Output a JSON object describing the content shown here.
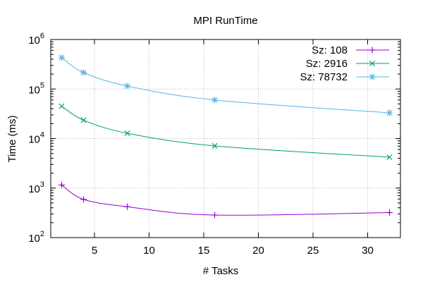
{
  "chart_data": {
    "type": "line",
    "title": "MPI RunTime",
    "xlabel": "# Tasks",
    "ylabel": "Time (ms)",
    "xlim": [
      1,
      33
    ],
    "ylim": [
      100,
      1000000
    ],
    "yscale": "log",
    "grid": true,
    "legend_position": "top-right",
    "x": [
      2,
      4,
      8,
      16,
      32
    ],
    "x_ticks": [
      {
        "value": 5,
        "label": "5"
      },
      {
        "value": 10,
        "label": "10"
      },
      {
        "value": 15,
        "label": "15"
      },
      {
        "value": 20,
        "label": "20"
      },
      {
        "value": 25,
        "label": "25"
      },
      {
        "value": 30,
        "label": "30"
      }
    ],
    "y_ticks": [
      {
        "value": 100,
        "base": "10",
        "exp": "2"
      },
      {
        "value": 1000,
        "base": "10",
        "exp": "3"
      },
      {
        "value": 10000,
        "base": "10",
        "exp": "4"
      },
      {
        "value": 100000,
        "base": "10",
        "exp": "5"
      },
      {
        "value": 1000000,
        "base": "10",
        "exp": "6"
      }
    ],
    "series": [
      {
        "name": "Sz: 108",
        "color": "#9400d3",
        "marker": "plus",
        "values": [
          1150,
          590,
          420,
          285,
          320
        ]
      },
      {
        "name": "Sz: 2916",
        "color": "#009e73",
        "marker": "cross",
        "values": [
          45000,
          23500,
          12800,
          7100,
          4200
        ]
      },
      {
        "name": "Sz: 78732",
        "color": "#56b4e9",
        "marker": "star",
        "values": [
          430000,
          215000,
          115000,
          60000,
          33000
        ]
      }
    ]
  }
}
